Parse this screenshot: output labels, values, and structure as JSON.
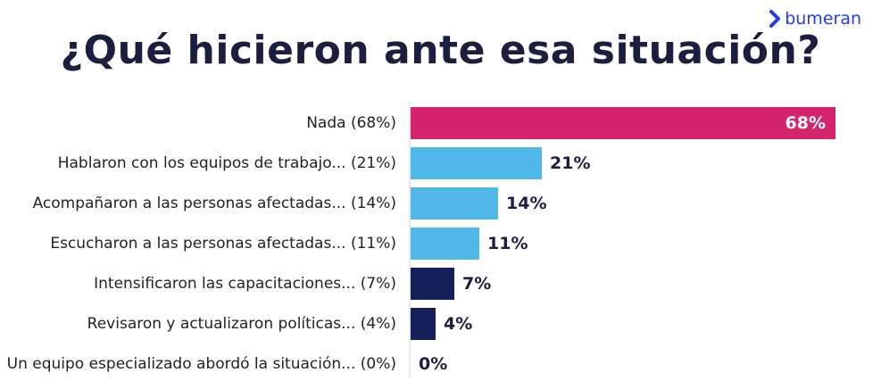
{
  "brand": {
    "name": "bumeran",
    "icon": "chevron-right-icon",
    "color": "#1f3cf0"
  },
  "chart_data": {
    "type": "bar",
    "orientation": "horizontal",
    "title": "¿Qué hicieron ante esa situación?",
    "categories": [
      "Nada (68%)",
      "Hablaron con los equipos de trabajo... (21%)",
      "Acompañaron a las personas afectadas... (14%)",
      "Escucharon a las personas afectadas... (11%)",
      "Intensificaron las capacitaciones... (7%)",
      "Revisaron y actualizaron políticas... (4%)",
      "Un equipo especializado abordó la situación... (0%)"
    ],
    "values": [
      68,
      21,
      14,
      11,
      7,
      4,
      0
    ],
    "value_labels": [
      "68%",
      "21%",
      "14%",
      "11%",
      "7%",
      "4%",
      "0%"
    ],
    "colors": [
      "#d4246e",
      "#4fb8e8",
      "#4fb8e8",
      "#4fb8e8",
      "#15205a",
      "#15205a",
      "#15205a"
    ],
    "xlim": [
      0,
      68
    ],
    "grid": false,
    "legend": "none"
  }
}
